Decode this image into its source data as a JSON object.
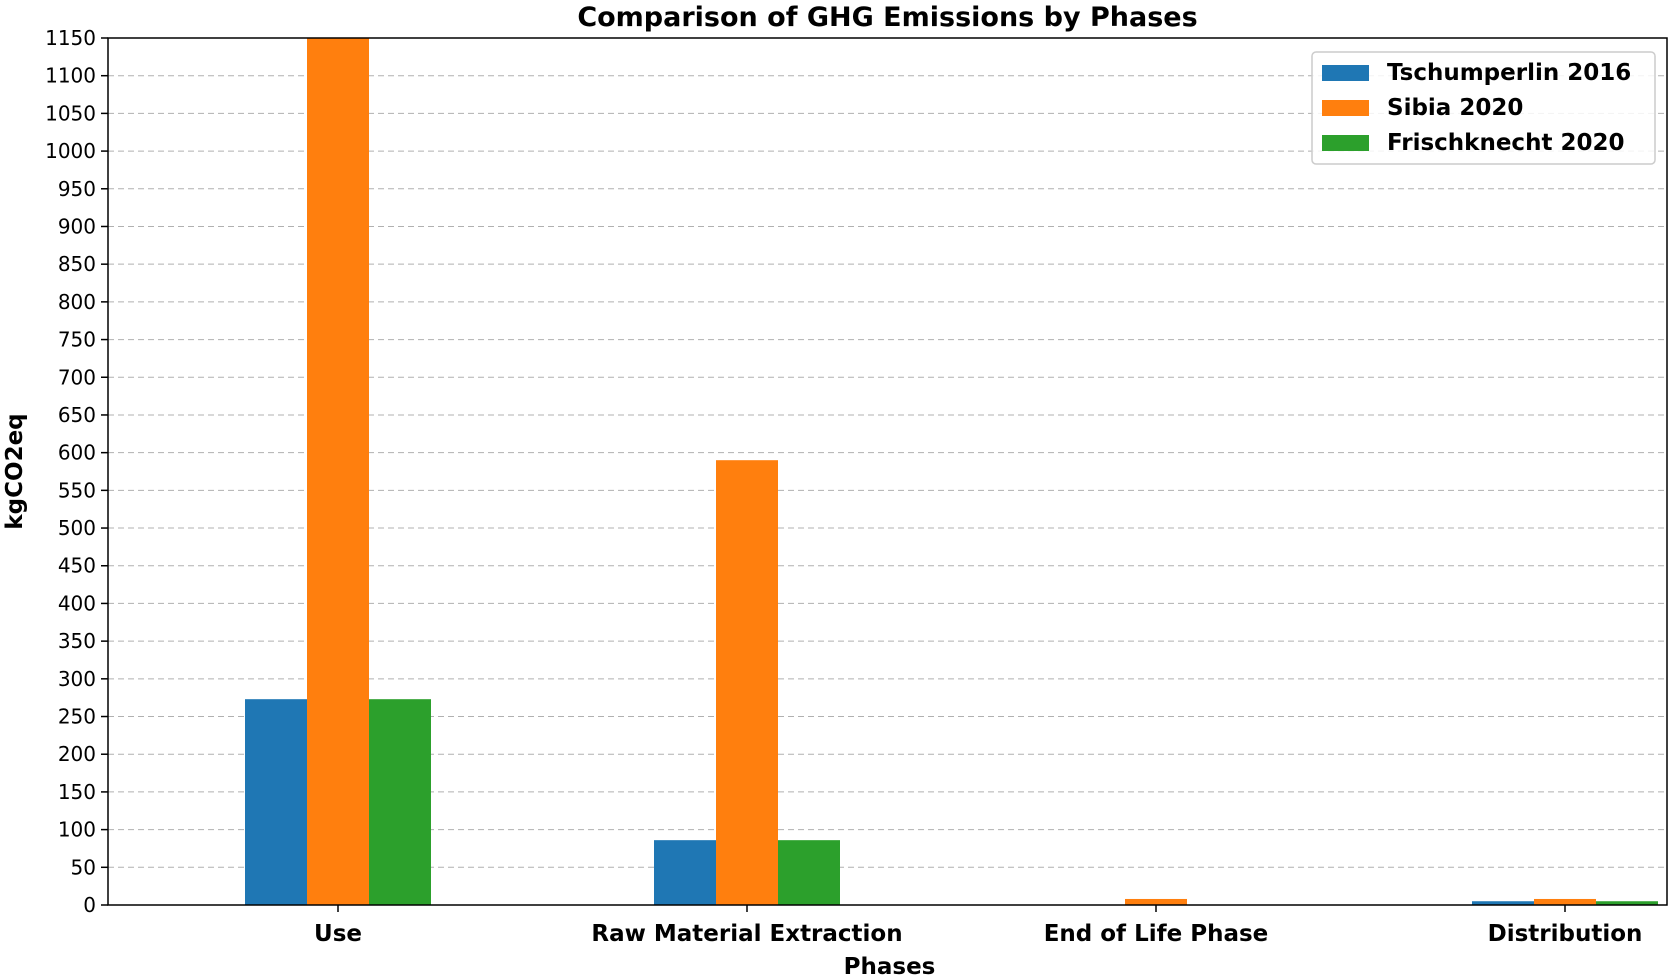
{
  "chart_data": {
    "type": "bar",
    "title": "Comparison of GHG Emissions by Phases",
    "xlabel": "Phases",
    "ylabel": "kgCO2eq",
    "categories": [
      "Use",
      "Raw Material Extraction",
      "End of Life Phase",
      "Distribution"
    ],
    "series": [
      {
        "name": "Tschumperlin 2016",
        "color": "#1f77b4",
        "values": [
          273,
          86,
          0,
          5
        ]
      },
      {
        "name": "Sibia 2020",
        "color": "#ff7f0e",
        "values": [
          1160,
          590,
          8,
          8
        ]
      },
      {
        "name": "Frischknecht 2020",
        "color": "#2ca02c",
        "values": [
          273,
          86,
          0,
          5
        ]
      }
    ],
    "ylim": [
      0,
      1150
    ],
    "yticks": [
      0,
      50,
      100,
      150,
      200,
      250,
      300,
      350,
      400,
      450,
      500,
      550,
      600,
      650,
      700,
      750,
      800,
      850,
      900,
      950,
      1000,
      1050,
      1100,
      1150
    ],
    "grid": "horizontal dashed",
    "legend_position": "top-right"
  }
}
